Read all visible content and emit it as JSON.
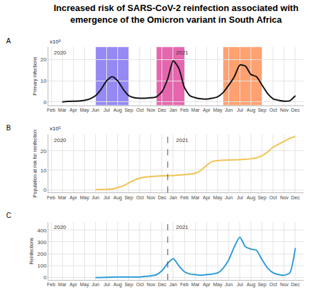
{
  "title": "Increased risk of SARS-CoV-2 reinfection associated with\nemergence of the Omicron variant in South Africa",
  "chart_data": [
    {
      "type": "line",
      "label": "A",
      "y_label": "Primary infections",
      "scale_label": "x10³",
      "year_labels": [
        {
          "text": "2020",
          "at": 0
        },
        {
          "text": "2021",
          "at": 22
        }
      ],
      "categories": [
        "Feb",
        null,
        "Mar",
        null,
        "Apr",
        null,
        "May",
        null,
        "Jun",
        null,
        "Jul",
        null,
        "Aug",
        null,
        "Sep",
        null,
        "Oct",
        null,
        "Nov",
        null,
        "Dec",
        null,
        "Jan",
        null,
        "Feb",
        null,
        "Mar",
        null,
        "Apr",
        null,
        "May",
        null,
        "Jun",
        null,
        "Jul",
        null,
        "Aug",
        null,
        "Sep",
        null,
        "Oct",
        null,
        "Nov",
        null,
        "Dec",
        null
      ],
      "values": [
        null,
        null,
        0.1,
        0.3,
        0.4,
        0.5,
        0.8,
        1.5,
        3,
        6,
        10,
        12,
        10,
        6,
        3,
        2,
        1.8,
        1.8,
        2,
        2.5,
        5,
        11,
        19.5,
        16,
        7,
        3,
        2,
        1.5,
        1.4,
        1.8,
        2.5,
        4.5,
        8,
        12,
        17.5,
        17,
        13,
        12,
        8,
        4,
        1.5,
        0.8,
        0.4,
        0.6,
        3,
        null
      ],
      "color": "#111111",
      "line_style": "solid",
      "shaded": [
        {
          "start": 8,
          "end": 14,
          "color": "#7b6cf0"
        },
        {
          "start": 19,
          "end": 24,
          "color": "#e0409a"
        },
        {
          "start": 31,
          "end": 38,
          "color": "#ff8a4c"
        }
      ],
      "ylim": [
        -1.5,
        26
      ],
      "yticks": [
        0,
        10,
        20
      ],
      "grid": true
    },
    {
      "type": "line",
      "label": "B",
      "y_label": "Population at risk for reinfection",
      "scale_label": "x10⁵",
      "year_labels": [
        {
          "text": "2020",
          "at": 0
        },
        {
          "text": "2021",
          "at": 22
        }
      ],
      "categories": [
        "Feb",
        null,
        "Mar",
        null,
        "Apr",
        null,
        "May",
        null,
        "Jun",
        null,
        "Jul",
        null,
        "Aug",
        null,
        "Sep",
        null,
        "Oct",
        null,
        "Nov",
        null,
        "Dec",
        null,
        "Jan",
        null,
        "Feb",
        null,
        "Mar",
        null,
        "Apr",
        null,
        "May",
        null,
        "Jun",
        null,
        "Jul",
        null,
        "Aug",
        null,
        "Sep",
        null,
        "Oct",
        null,
        "Nov",
        null,
        "Dec",
        null
      ],
      "values": [
        null,
        null,
        null,
        null,
        null,
        null,
        null,
        null,
        0.05,
        0.1,
        0.2,
        0.4,
        1,
        2,
        3.5,
        5,
        6,
        6.5,
        6.8,
        7,
        7.1,
        7.2,
        7.3,
        7.5,
        7.8,
        8,
        8.5,
        10,
        12.5,
        14.5,
        15,
        15.2,
        15.3,
        15.4,
        15.5,
        15.7,
        16,
        16.5,
        17.5,
        19.5,
        22,
        23.5,
        25,
        26.5,
        27.5,
        null
      ],
      "color": "#f2c14e",
      "line_style": "solid",
      "cutoff": 21,
      "ylim": [
        -1.5,
        28.5
      ],
      "yticks": [
        0,
        10,
        20
      ],
      "grid": true
    },
    {
      "type": "line",
      "label": "C",
      "y_label": "Reinfections",
      "year_labels": [
        {
          "text": "2020",
          "at": 0
        },
        {
          "text": "2021",
          "at": 22
        }
      ],
      "categories": [
        "Feb",
        null,
        "Mar",
        null,
        "Apr",
        null,
        "May",
        null,
        "Jun",
        null,
        "Jul",
        null,
        "Aug",
        null,
        "Sep",
        null,
        "Oct",
        null,
        "Nov",
        null,
        "Dec",
        null,
        "Jan",
        null,
        "Feb",
        null,
        "Mar",
        null,
        "Apr",
        null,
        "May",
        null,
        "Jun",
        null,
        "Jul",
        null,
        "Aug",
        null,
        "Sep",
        null,
        "Oct",
        null,
        "Nov",
        null,
        "Dec",
        null
      ],
      "values": [
        null,
        null,
        null,
        null,
        null,
        null,
        null,
        null,
        0,
        1,
        2,
        4,
        5,
        5,
        5,
        5,
        5,
        10,
        15,
        25,
        60,
        120,
        160,
        100,
        50,
        30,
        25,
        20,
        25,
        30,
        40,
        80,
        150,
        260,
        340,
        260,
        240,
        230,
        150,
        80,
        40,
        25,
        20,
        40,
        250,
        null
      ],
      "color": "#2b9bd7",
      "line_style": "solid",
      "cutoff": 21,
      "ylim": [
        -20,
        470
      ],
      "yticks": [
        0,
        100,
        200,
        300,
        400
      ],
      "grid": true
    }
  ]
}
